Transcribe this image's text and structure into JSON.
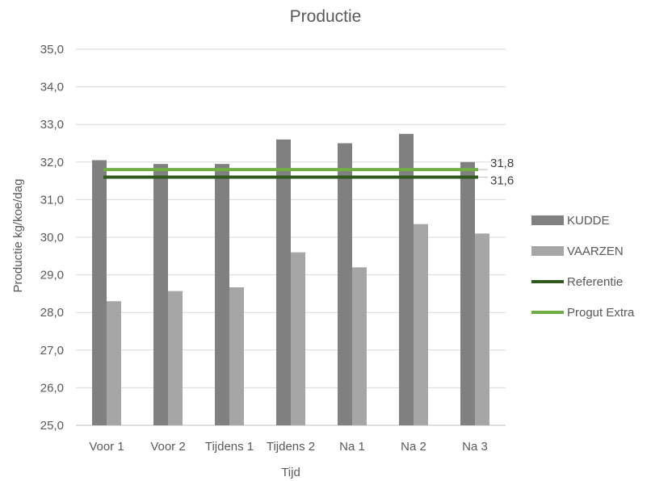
{
  "chart_data": {
    "type": "bar",
    "title": "Productie",
    "xlabel": "Tijd",
    "ylabel": "Productie kg/koe/dag",
    "ylim": [
      25,
      35
    ],
    "yticks": [
      "25,0",
      "26,0",
      "27,0",
      "28,0",
      "29,0",
      "30,0",
      "31,0",
      "32,0",
      "33,0",
      "34,0",
      "35,0"
    ],
    "categories": [
      "Voor 1",
      "Voor 2",
      "Tijdens 1",
      "Tijdens 2",
      "Na 1",
      "Na 2",
      "Na 3"
    ],
    "series": [
      {
        "name": "KUDDE",
        "color": "#808080",
        "values": [
          32.05,
          31.95,
          31.95,
          32.6,
          32.5,
          32.75,
          32.0
        ]
      },
      {
        "name": "VAARZEN",
        "color": "#a6a6a6",
        "values": [
          28.3,
          28.57,
          28.67,
          29.6,
          29.2,
          30.35,
          30.1
        ]
      }
    ],
    "reference_lines": [
      {
        "name": "Referentie",
        "value": 31.6,
        "label": "31,6",
        "color": "#2e5a1c"
      },
      {
        "name": "Progut Extra",
        "value": 31.8,
        "label": "31,8",
        "color": "#70ad47"
      }
    ],
    "grid": true,
    "legend_position": "right"
  }
}
